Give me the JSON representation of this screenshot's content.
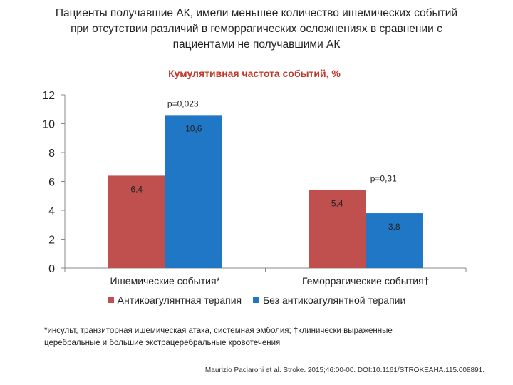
{
  "heading": {
    "line1": "Пациенты получавшие АК, имели меньшее количество ишемических событий",
    "line2": "при отсутствии различий в геморрагических осложнениях в сравнении с",
    "line3": "пациентами не получавшими АК"
  },
  "chart_data": {
    "type": "bar",
    "title": "Кумулятивная частота событий, %",
    "categories": [
      "Ишемические события*",
      "Геморрагические события†"
    ],
    "series": [
      {
        "name": "Антикоагулянтная терапия",
        "values": [
          6.4,
          5.4
        ],
        "labels": [
          "6,4",
          "5,4"
        ],
        "color": "#c0504d"
      },
      {
        "name": "Без антикоагулянтной терапии",
        "values": [
          10.6,
          3.8
        ],
        "labels": [
          "10,6",
          "3,8"
        ],
        "color": "#1f77c6"
      }
    ],
    "p_values": [
      "p=0,023",
      "p=0,31"
    ],
    "ylim": [
      0,
      12
    ],
    "yticks": [
      "0",
      "2",
      "4",
      "6",
      "8",
      "10",
      "12"
    ],
    "xlabel": "",
    "ylabel": "",
    "grid": false,
    "legend": "bottom"
  },
  "footnote": {
    "line1": "*инсульт, транзиторная ишемическая атака, системная эмболия; †клинически выраженные",
    "line2": "церебральные и большие экстрацеребральные кровотечения"
  },
  "citation": "Maurizio Paciaroni et al. Stroke. 2015;46:00-00. DOI:10.1161/STROKEAHA.115.008891."
}
